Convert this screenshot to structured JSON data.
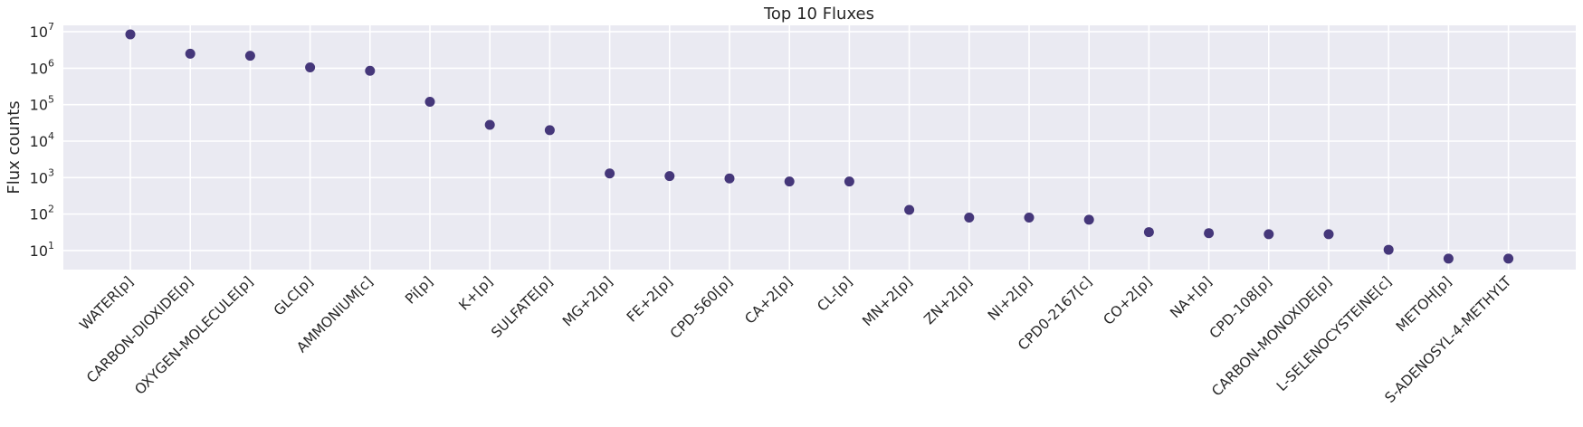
{
  "chart_data": {
    "type": "scatter",
    "title": "Top 10 Fluxes",
    "xlabel": "",
    "ylabel": "Flux counts",
    "yscale": "log",
    "ylim": [
      3,
      15000000
    ],
    "yticks": [
      {
        "base": "10",
        "exp": "1",
        "value": 10
      },
      {
        "base": "10",
        "exp": "2",
        "value": 100
      },
      {
        "base": "10",
        "exp": "3",
        "value": 1000
      },
      {
        "base": "10",
        "exp": "4",
        "value": 10000
      },
      {
        "base": "10",
        "exp": "5",
        "value": 100000
      },
      {
        "base": "10",
        "exp": "6",
        "value": 1000000
      },
      {
        "base": "10",
        "exp": "7",
        "value": 10000000
      }
    ],
    "grid": true,
    "marker_color": "#45377a",
    "background_color": "#eaeaf2",
    "grid_color": "#ffffff",
    "categories": [
      "WATER[p]",
      "CARBON-DIOXIDE[p]",
      "OXYGEN-MOLECULE[p]",
      "GLC[p]",
      "AMMONIUM[c]",
      "Pi[p]",
      "K+[p]",
      "SULFATE[p]",
      "MG+2[p]",
      "FE+2[p]",
      "CPD-560[p]",
      "CA+2[p]",
      "CL-[p]",
      "MN+2[p]",
      "ZN+2[p]",
      "NI+2[p]",
      "CPD0-2167[c]",
      "CO+2[p]",
      "NA+[p]",
      "CPD-108[p]",
      "CARBON-MONOXIDE[p]",
      "L-SELENOCYSTEINE[c]",
      "METOH[p]",
      "S-ADENOSYL-4-METHYLT"
    ],
    "values": [
      8500000,
      2500000,
      2200000,
      1050000,
      850000,
      120000,
      28000,
      20000,
      1300,
      1100,
      950,
      780,
      780,
      130,
      80,
      80,
      70,
      32,
      30,
      28,
      28,
      10.5,
      6,
      6
    ]
  }
}
